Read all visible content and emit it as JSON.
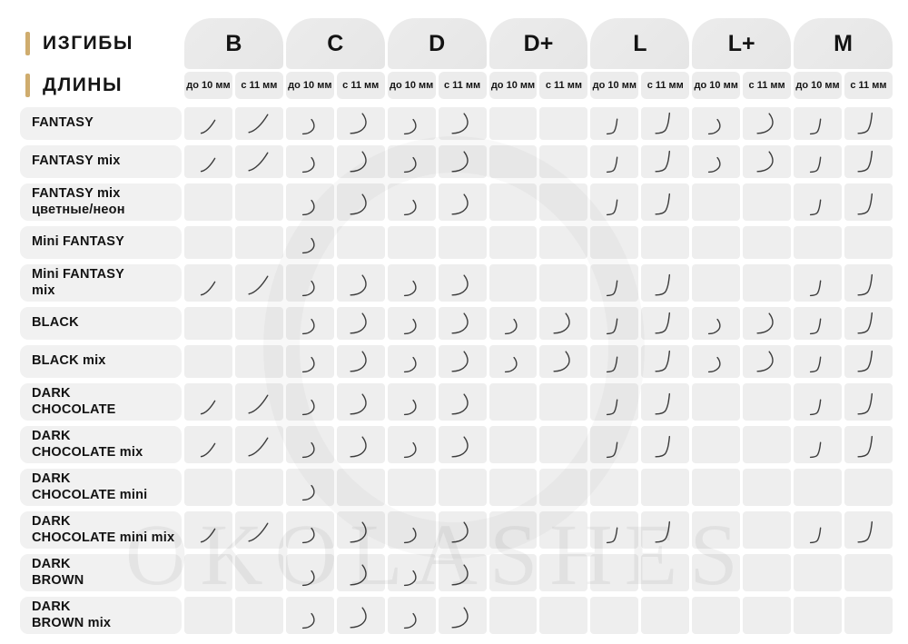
{
  "accent_color": "#cfac6e",
  "glyph_color": "#3c3c3c",
  "header": {
    "curls_label": "ИЗГИБЫ",
    "lengths_label": "ДЛИНЫ"
  },
  "columns": [
    {
      "label": "B",
      "glyph": "swoosh"
    },
    {
      "label": "C",
      "glyph": "hook"
    },
    {
      "label": "D",
      "glyph": "hook"
    },
    {
      "label": "D+",
      "glyph": "hook"
    },
    {
      "label": "L",
      "glyph": "jcurl"
    },
    {
      "label": "L+",
      "glyph": "hook"
    },
    {
      "label": "M",
      "glyph": "jcurl"
    }
  ],
  "length_labels": [
    "до 10 мм",
    "с 11 мм"
  ],
  "watermark": "OKOLASHES",
  "chart_data": {
    "type": "table",
    "title": "Наличие изгибов и длин по продуктам",
    "categories": [
      "B до 10 мм",
      "B с 11 мм",
      "C до 10 мм",
      "C с 11 мм",
      "D до 10 мм",
      "D с 11 мм",
      "D+ до 10 мм",
      "D+ с 11 мм",
      "L до 10 мм",
      "L с 11 мм",
      "L+ до 10 мм",
      "L+ с 11 мм",
      "M до 10 мм",
      "M с 11 мм"
    ],
    "rows": [
      {
        "label_lines": [
          "FANTASY"
        ],
        "values": [
          1,
          1,
          1,
          1,
          1,
          1,
          0,
          0,
          1,
          1,
          1,
          1,
          1,
          1
        ]
      },
      {
        "label_lines": [
          "FANTASY mix"
        ],
        "values": [
          1,
          1,
          1,
          1,
          1,
          1,
          0,
          0,
          1,
          1,
          1,
          1,
          1,
          1
        ]
      },
      {
        "label_lines": [
          "FANTASY mix",
          "цветные/неон"
        ],
        "values": [
          0,
          0,
          1,
          1,
          1,
          1,
          0,
          0,
          1,
          1,
          0,
          0,
          1,
          1
        ]
      },
      {
        "label_lines": [
          "Mini FANTASY"
        ],
        "values": [
          0,
          0,
          1,
          0,
          0,
          0,
          0,
          0,
          0,
          0,
          0,
          0,
          0,
          0
        ]
      },
      {
        "label_lines": [
          "Mini FANTASY",
          "mix"
        ],
        "values": [
          1,
          1,
          1,
          1,
          1,
          1,
          0,
          0,
          1,
          1,
          0,
          0,
          1,
          1
        ]
      },
      {
        "label_lines": [
          "BLACK"
        ],
        "values": [
          0,
          0,
          1,
          1,
          1,
          1,
          1,
          1,
          1,
          1,
          1,
          1,
          1,
          1
        ]
      },
      {
        "label_lines": [
          "BLACK mix"
        ],
        "values": [
          0,
          0,
          1,
          1,
          1,
          1,
          1,
          1,
          1,
          1,
          1,
          1,
          1,
          1
        ]
      },
      {
        "label_lines": [
          "DARK",
          "CHOCOLATE"
        ],
        "values": [
          1,
          1,
          1,
          1,
          1,
          1,
          0,
          0,
          1,
          1,
          0,
          0,
          1,
          1
        ]
      },
      {
        "label_lines": [
          "DARK",
          "CHOCOLATE mix"
        ],
        "values": [
          1,
          1,
          1,
          1,
          1,
          1,
          0,
          0,
          1,
          1,
          0,
          0,
          1,
          1
        ]
      },
      {
        "label_lines": [
          "DARK",
          "CHOCOLATE mini"
        ],
        "values": [
          0,
          0,
          1,
          0,
          0,
          0,
          0,
          0,
          0,
          0,
          0,
          0,
          0,
          0
        ]
      },
      {
        "label_lines": [
          "DARK",
          "CHOCOLATE mini mix"
        ],
        "values": [
          1,
          1,
          1,
          1,
          1,
          1,
          0,
          0,
          1,
          1,
          0,
          0,
          1,
          1
        ]
      },
      {
        "label_lines": [
          "DARK",
          "BROWN"
        ],
        "values": [
          0,
          0,
          1,
          1,
          1,
          1,
          0,
          0,
          0,
          0,
          0,
          0,
          0,
          0
        ]
      },
      {
        "label_lines": [
          "DARK",
          "BROWN mix"
        ],
        "values": [
          0,
          0,
          1,
          1,
          1,
          1,
          0,
          0,
          0,
          0,
          0,
          0,
          0,
          0
        ]
      }
    ]
  }
}
